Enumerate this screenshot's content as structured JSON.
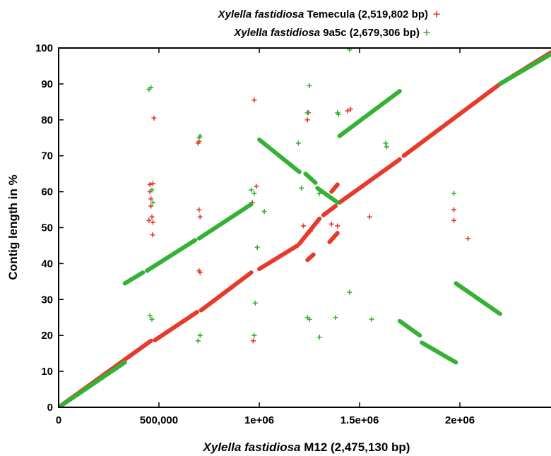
{
  "chart_data": {
    "type": "scatter",
    "title": "",
    "xlabel": {
      "italic": "Xylella fastidiosa",
      "plain": "M12 (2,475,130 bp)"
    },
    "ylabel": "Contig length in %",
    "xlim": [
      0,
      2475130
    ],
    "ylim": [
      0,
      100
    ],
    "x_ticks": [
      {
        "value": 0,
        "label": "0"
      },
      {
        "value": 500000,
        "label": "500,000"
      },
      {
        "value": 1000000,
        "label": "1e+06"
      },
      {
        "value": 1500000,
        "label": "1.5e+06"
      },
      {
        "value": 2000000,
        "label": "2e+06"
      }
    ],
    "y_ticks": [
      {
        "value": 0,
        "label": "0"
      },
      {
        "value": 10,
        "label": "10"
      },
      {
        "value": 20,
        "label": "20"
      },
      {
        "value": 30,
        "label": "30"
      },
      {
        "value": 40,
        "label": "40"
      },
      {
        "value": 50,
        "label": "50"
      },
      {
        "value": 60,
        "label": "60"
      },
      {
        "value": 70,
        "label": "70"
      },
      {
        "value": 80,
        "label": "80"
      },
      {
        "value": 90,
        "label": "90"
      },
      {
        "value": 100,
        "label": "100"
      }
    ],
    "grid": false,
    "legend_position": "top-center",
    "marker": "+",
    "series": [
      {
        "name": {
          "italic": "Xylella fastidiosa",
          "plain": "Temecula (2,519,802 bp)"
        },
        "color": "#e8392b",
        "segments": [
          [
            0,
            0,
            460000,
            18.5
          ],
          [
            480000,
            18.7,
            690000,
            26.5
          ],
          [
            710000,
            27.0,
            960000,
            37.5
          ],
          [
            1000000,
            38.5,
            1190000,
            45.0
          ],
          [
            1200000,
            45.5,
            1300000,
            52.5
          ],
          [
            1320000,
            53.5,
            1380000,
            56.0
          ],
          [
            1400000,
            57.0,
            1700000,
            69.0
          ],
          [
            1720000,
            70.0,
            2200000,
            90.0
          ],
          [
            2200000,
            90.0,
            2475000,
            99.5
          ],
          [
            1350000,
            46.0,
            1390000,
            48.5
          ],
          [
            1240000,
            41.0,
            1270000,
            42.5
          ],
          [
            1360000,
            60.0,
            1390000,
            62.0
          ]
        ],
        "points": [
          [
            455000,
            62.0
          ],
          [
            470000,
            62.3
          ],
          [
            455000,
            60.0
          ],
          [
            460000,
            58.0
          ],
          [
            460000,
            56.0
          ],
          [
            450000,
            52.0
          ],
          [
            470000,
            51.5
          ],
          [
            465000,
            53.0
          ],
          [
            468000,
            48.0
          ],
          [
            475000,
            80.5
          ],
          [
            695000,
            73.5
          ],
          [
            700000,
            74.0
          ],
          [
            705000,
            53.0
          ],
          [
            700000,
            55.0
          ],
          [
            700000,
            38.0
          ],
          [
            705000,
            37.5
          ],
          [
            975000,
            85.5
          ],
          [
            985000,
            61.5
          ],
          [
            965000,
            57.0
          ],
          [
            970000,
            18.5
          ],
          [
            1240000,
            80.0
          ],
          [
            1245000,
            82.0
          ],
          [
            1440000,
            82.5
          ],
          [
            1455000,
            83.0
          ],
          [
            1360000,
            51.0
          ],
          [
            1390000,
            50.5
          ],
          [
            1220000,
            50.5
          ],
          [
            1255000,
            49.0
          ],
          [
            1550000,
            53.0
          ],
          [
            1970000,
            55.0
          ],
          [
            1970000,
            52.0
          ],
          [
            2040000,
            47.0
          ]
        ]
      },
      {
        "name": {
          "italic": "Xylella fastidiosa",
          "plain": "9a5c (2,679,306 bp)"
        },
        "color": "#33b233",
        "segments": [
          [
            0,
            0,
            330000,
            12.5
          ],
          [
            330000,
            34.5,
            420000,
            37.5
          ],
          [
            440000,
            38.0,
            680000,
            46.5
          ],
          [
            700000,
            47.0,
            960000,
            56.5
          ],
          [
            1000000,
            74.5,
            1200000,
            65.5
          ],
          [
            1230000,
            65.0,
            1280000,
            62.5
          ],
          [
            1290000,
            61.0,
            1390000,
            57.0
          ],
          [
            1400000,
            75.5,
            1700000,
            88.0
          ],
          [
            1700000,
            24.0,
            1800000,
            20.0
          ],
          [
            1810000,
            18.0,
            1980000,
            12.5
          ],
          [
            1980000,
            34.5,
            2200000,
            26.0
          ],
          [
            2200000,
            90.0,
            2475000,
            99.0
          ]
        ],
        "points": [
          [
            450000,
            88.5
          ],
          [
            460000,
            89.0
          ],
          [
            455000,
            25.5
          ],
          [
            465000,
            24.5
          ],
          [
            700000,
            75.0
          ],
          [
            705000,
            75.5
          ],
          [
            695000,
            18.5
          ],
          [
            705000,
            20.0
          ],
          [
            960000,
            60.5
          ],
          [
            975000,
            59.5
          ],
          [
            1025000,
            54.5
          ],
          [
            990000,
            44.5
          ],
          [
            980000,
            29.0
          ],
          [
            975000,
            20.0
          ],
          [
            1250000,
            89.5
          ],
          [
            1240000,
            82.0
          ],
          [
            1195000,
            73.5
          ],
          [
            1210000,
            61.0
          ],
          [
            1300000,
            59.5
          ],
          [
            1390000,
            82.0
          ],
          [
            1395000,
            81.5
          ],
          [
            1450000,
            99.5
          ],
          [
            1630000,
            73.5
          ],
          [
            1635000,
            72.5
          ],
          [
            1450000,
            32.0
          ],
          [
            1240000,
            25.0
          ],
          [
            1250000,
            24.5
          ],
          [
            1380000,
            25.0
          ],
          [
            1560000,
            24.5
          ],
          [
            1300000,
            19.5
          ],
          [
            1970000,
            59.5
          ],
          [
            465000,
            60.5
          ],
          [
            470000,
            57.0
          ]
        ]
      }
    ]
  }
}
